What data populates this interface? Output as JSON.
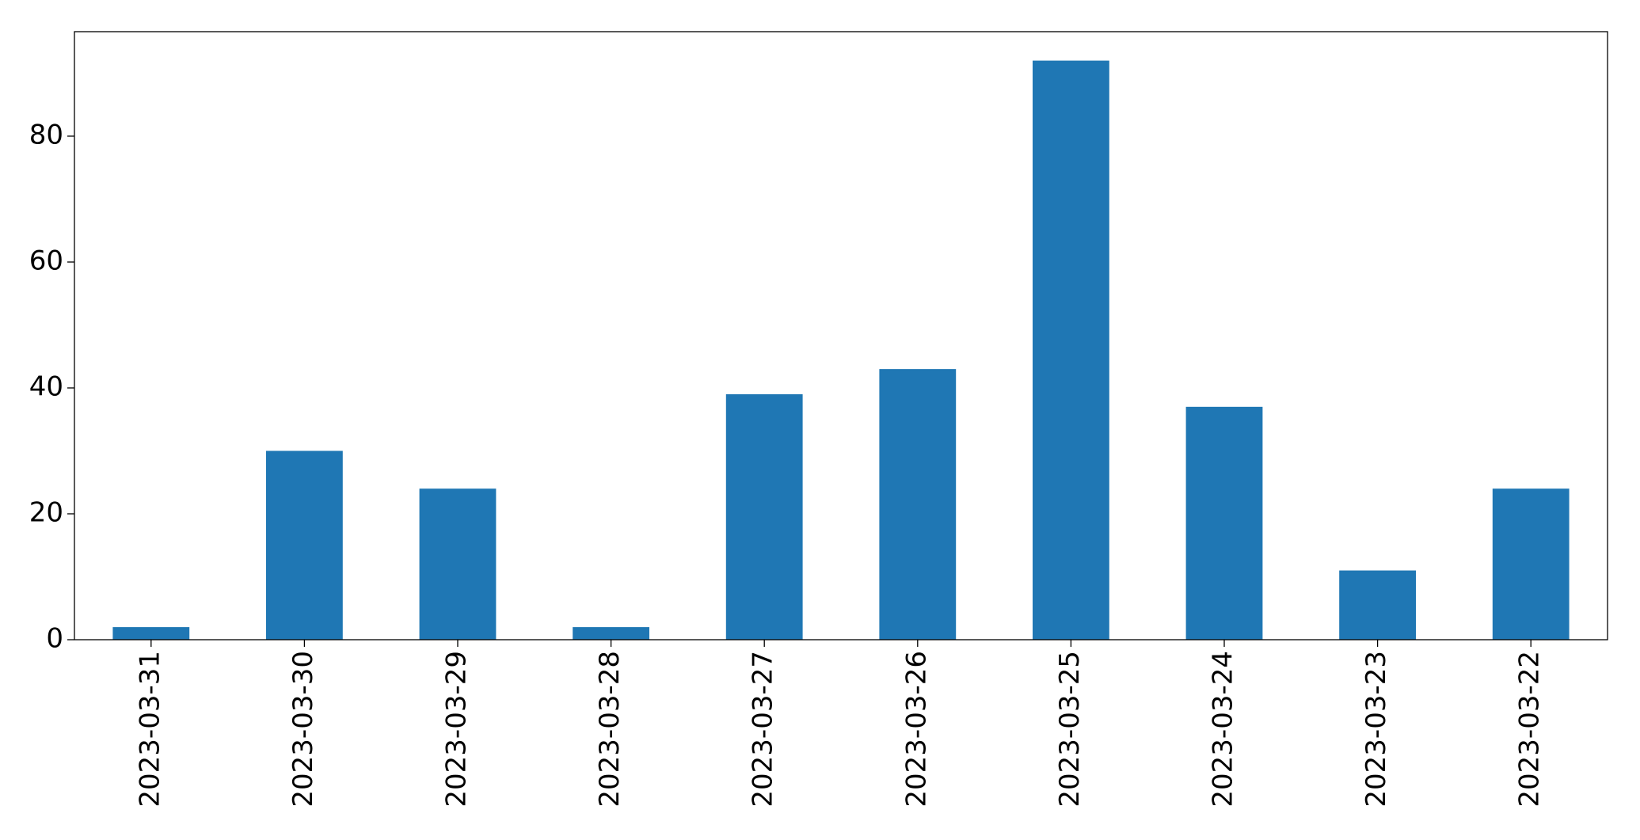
{
  "chart_data": {
    "type": "bar",
    "categories": [
      "2023-03-31",
      "2023-03-30",
      "2023-03-29",
      "2023-03-28",
      "2023-03-27",
      "2023-03-26",
      "2023-03-25",
      "2023-03-24",
      "2023-03-23",
      "2023-03-22"
    ],
    "values": [
      2,
      30,
      24,
      2,
      39,
      43,
      92,
      37,
      11,
      24
    ],
    "color": "#1f77b4",
    "ylim": [
      0,
      96.6
    ],
    "yticks": [
      0,
      20,
      40,
      60,
      80
    ],
    "grid": false
  }
}
